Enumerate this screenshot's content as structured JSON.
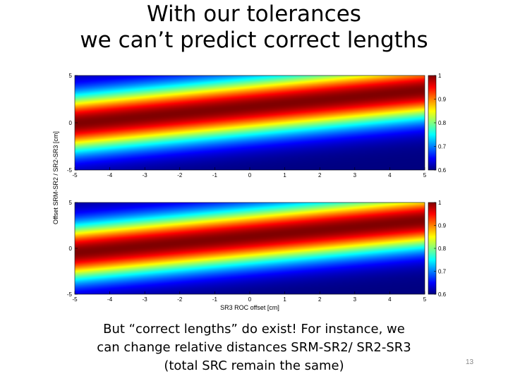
{
  "slide": {
    "title_line1": "With our tolerances",
    "title_line2": "we can’t predict correct lengths",
    "caption_line1": "But “correct lengths” do exist! For instance, we",
    "caption_line2": "can change relative distances SRM-SR2/ SR2-SR3",
    "caption_line3": "(total SRC remain the same)",
    "slide_number": "13"
  },
  "chart_data": [
    {
      "type": "heatmap",
      "xlabel": "",
      "ylabel": "",
      "xlim": [
        -5,
        5
      ],
      "ylim": [
        -5,
        5
      ],
      "xticks": [
        "-5",
        "-4",
        "-3",
        "-2",
        "-1",
        "0",
        "1",
        "2",
        "3",
        "4",
        "5"
      ],
      "yticks": [
        "5",
        "0",
        "-5"
      ],
      "colorbar": {
        "range": [
          0.6,
          1
        ],
        "ticks": [
          "1",
          "0.9",
          "0.8",
          "0.7",
          "0.6"
        ],
        "colormap": "jet"
      },
      "ridge": {
        "slope": 0.35,
        "intercept": 1.7,
        "width": 3.0
      }
    },
    {
      "type": "heatmap",
      "xlabel": "SR3 ROC offset [cm]",
      "ylabel": "",
      "xlim": [
        -5,
        5
      ],
      "ylim": [
        -5,
        5
      ],
      "xticks": [
        "-5",
        "-4",
        "-3",
        "-2",
        "-1",
        "0",
        "1",
        "2",
        "3",
        "4",
        "5"
      ],
      "yticks": [
        "5",
        "0",
        "-5"
      ],
      "colorbar": {
        "range": [
          0.6,
          1
        ],
        "ticks": [
          "1",
          "0.9",
          "0.8",
          "0.7",
          "0.6"
        ],
        "colormap": "jet"
      },
      "ridge": {
        "slope": 0.35,
        "intercept": 1.3,
        "width": 3.0
      }
    }
  ],
  "shared_ylabel": "Offset SRM-SR2 / SR2-SR3 [cm]"
}
